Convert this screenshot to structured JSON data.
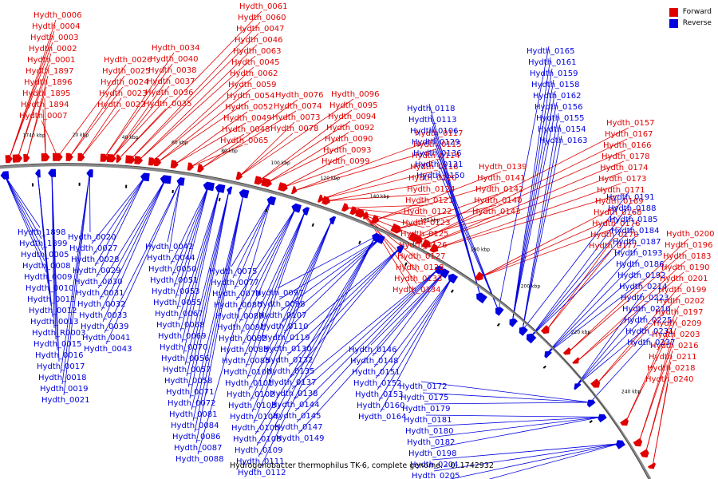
{
  "legend": {
    "forward": {
      "label": "Forward",
      "color": "#e00000"
    },
    "reverse": {
      "label": "Reverse",
      "color": "#0000e0"
    }
  },
  "caption": "Hydrogenobacter thermophilus TK-6, complete genome. - 0..1742932",
  "ticks": [
    "1740 kbp",
    "20 kbp",
    "40 kbp",
    "60 kbp",
    "80 kbp",
    "100 kbp",
    "120 kbp",
    "140 kbp",
    "160 kbp",
    "180 kbp",
    "200 kbp",
    "220 kbp",
    "240 kbp"
  ],
  "forward_labels": [
    "Hydth_0006",
    "Hydth_0004",
    "Hydth_0003",
    "Hydth_0002",
    "Hydth_0001",
    "Hydth_1897",
    "Hydth_1896",
    "Hydth_1895",
    "Hydth_1894",
    "Hydth_0007",
    "Hydth_0026",
    "Hydth_0025",
    "Hydth_0024",
    "Hydth_0023",
    "Hydth_0022",
    "Hydth_0034",
    "Hydth_0040",
    "Hydth_0038",
    "Hydth_0037",
    "Hydth_0036",
    "Hydth_0035",
    "Hydth_0061",
    "Hydth_0060",
    "Hydth_0047",
    "Hydth_0046",
    "Hydth_0063",
    "Hydth_0045",
    "Hydth_0062",
    "Hydth_0059",
    "Hydth_0054",
    "Hydth_0052",
    "Hydth_0049",
    "Hydth_0048",
    "Hydth_0065",
    "Hydth_0076",
    "Hydth_0074",
    "Hydth_0073",
    "Hydth_0078",
    "Hydth_0096",
    "Hydth_0095",
    "Hydth_0094",
    "Hydth_0092",
    "Hydth_0090",
    "Hydth_0093",
    "Hydth_0099",
    "Hydth_0117",
    "Hydth_0115",
    "Hydth_0114",
    "Hydth_0116",
    "Hydth_0120",
    "Hydth_0124",
    "Hydth_0121",
    "Hydth_0122",
    "Hydth_0123",
    "Hydth_0125",
    "Hydth_0126",
    "Hydth_0127",
    "Hydth_0128",
    "Hydth_0133",
    "Hydth_0134",
    "Hydth_0139",
    "Hydth_0141",
    "Hydth_0142",
    "Hydth_0140",
    "Hydth_0143",
    "Hydth_0157",
    "Hydth_0167",
    "Hydth_0166",
    "Hydth_0178",
    "Hydth_0174",
    "Hydth_0173",
    "Hydth_0171",
    "Hydth_0169",
    "Hydth_0168",
    "Hydth_0176",
    "Hydth_0170",
    "Hydth_0177",
    "Hydth_0200",
    "Hydth_0196",
    "Hydth_0183",
    "Hydth_0190",
    "Hydth_0201",
    "Hydth_0199",
    "Hydth_0202",
    "Hydth_0197",
    "Hydth_0209",
    "Hydth_0203",
    "Hydth_0216",
    "Hydth_0211",
    "Hydth_0218",
    "Hydth_0240"
  ],
  "reverse_labels": [
    "Hydth_1898",
    "Hydth_1899",
    "Hydth_0005",
    "Hydth_0008",
    "Hydth_0009",
    "Hydth_0010",
    "Hydth_0011",
    "Hydth_0012",
    "Hydth_0013",
    "Hydth_R0003",
    "Hydth_0015",
    "Hydth_0016",
    "Hydth_0017",
    "Hydth_0018",
    "Hydth_0019",
    "Hydth_0021",
    "Hydth_0020",
    "Hydth_0027",
    "Hydth_0028",
    "Hydth_0029",
    "Hydth_0030",
    "Hydth_0031",
    "Hydth_0032",
    "Hydth_0033",
    "Hydth_0039",
    "Hydth_0041",
    "Hydth_0043",
    "Hydth_0042",
    "Hydth_0044",
    "Hydth_0050",
    "Hydth_0051",
    "Hydth_0053",
    "Hydth_0055",
    "Hydth_0067",
    "Hydth_0068",
    "Hydth_0069",
    "Hydth_0070",
    "Hydth_0056",
    "Hydth_0057",
    "Hydth_0058",
    "Hydth_0071",
    "Hydth_0072",
    "Hydth_0081",
    "Hydth_0084",
    "Hydth_0086",
    "Hydth_0087",
    "Hydth_0088",
    "Hydth_0075",
    "Hydth_0077",
    "Hydth_0079",
    "Hydth_0080",
    "Hydth_0089",
    "Hydth_0091",
    "Hydth_0082",
    "Hydth_0083",
    "Hydth_0085",
    "Hydth_0100",
    "Hydth_0101",
    "Hydth_0102",
    "Hydth_0103",
    "Hydth_0104",
    "Hydth_0105",
    "Hydth_0108",
    "Hydth_0109",
    "Hydth_0111",
    "Hydth_0112",
    "Hydth_0097",
    "Hydth_0098",
    "Hydth_0107",
    "Hydth_0110",
    "Hydth_0119",
    "Hydth_0130",
    "Hydth_0132",
    "Hydth_0135",
    "Hydth_0137",
    "Hydth_0138",
    "Hydth_0144",
    "Hydth_0145",
    "Hydth_0147",
    "Hydth_0149",
    "Hydth_0146",
    "Hydth_0148",
    "Hydth_0151",
    "Hydth_0152",
    "Hydth_0153",
    "Hydth_0160",
    "Hydth_0164",
    "Hydth_0118",
    "Hydth_0113",
    "Hydth_0106",
    "Hydth_0129",
    "Hydth_0136",
    "Hydth_0131",
    "Hydth_0150",
    "Hydth_0165",
    "Hydth_0161",
    "Hydth_0159",
    "Hydth_0158",
    "Hydth_0162",
    "Hydth_0156",
    "Hydth_0155",
    "Hydth_0154",
    "Hydth_0163",
    "Hydth_0191",
    "Hydth_0188",
    "Hydth_0185",
    "Hydth_0184",
    "Hydth_0187",
    "Hydth_0193",
    "Hydth_0186",
    "Hydth_0192",
    "Hydth_0214",
    "Hydth_0223",
    "Hydth_0210",
    "Hydth_0225",
    "Hydth_0231",
    "Hydth_0237",
    "Hydth_0172",
    "Hydth_0175",
    "Hydth_0179",
    "Hydth_0181",
    "Hydth_0180",
    "Hydth_0182",
    "Hydth_0198",
    "Hydth_0204",
    "Hydth_0205",
    "Hydth_0233",
    "Hydth_0235"
  ]
}
